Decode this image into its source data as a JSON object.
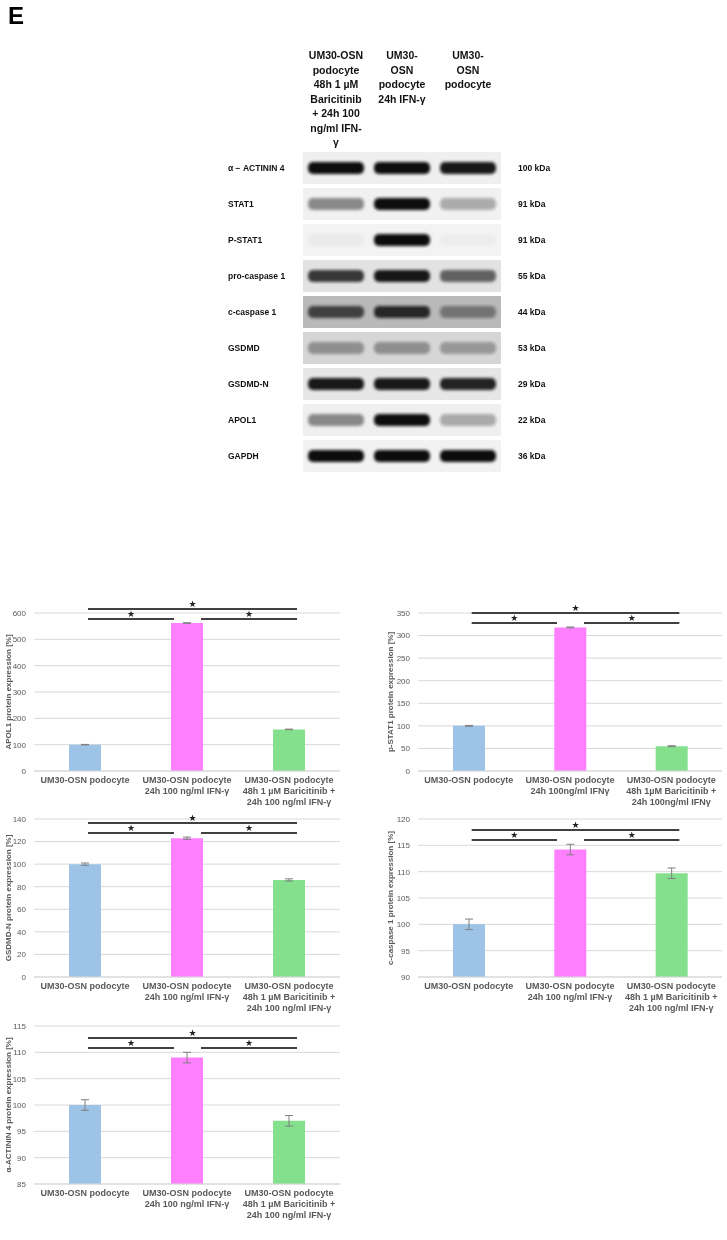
{
  "chart_data": [
    {
      "type": "other",
      "title": "E",
      "categories": [
        "UM30-OSN podocyte 48h 1 µM Baricitinib + 24h 100 ng/ml IFN- γ",
        "UM30-OSN podocyte 24h IFN-γ",
        "UM30-OSN podocyte"
      ],
      "y_categories": [
        "α − ACTININ 4",
        "STAT1",
        "P-STAT1",
        "pro-caspase 1",
        "c-caspase 1",
        "GSDMD",
        "GSDMD-N",
        "APOL1",
        "GAPDH"
      ],
      "y2_categories": [
        "100 kDa",
        "91 kDa",
        "91 kDa",
        "55 kDa",
        "44 kDa",
        "53 kDa",
        "29 kDa",
        "22 kDa",
        "36 kDa"
      ]
    },
    {
      "type": "bar",
      "ylabel": "APOL1 protein expression [%]",
      "categories": [
        "UM30-OSN podocyte",
        "UM30-OSN podocyte 24h 100 ng/ml IFN-γ",
        "UM30-OSN podocyte 48h 1 µM Baricitinib + 24h 100 ng/ml IFN-γ"
      ],
      "values": [
        100,
        562,
        158
      ],
      "errors": [
        1,
        1,
        1
      ],
      "colors": [
        "#9dc3e6",
        "#ff80ff",
        "#84e08c"
      ],
      "ylim": [
        0,
        600
      ],
      "yticks": [
        0,
        100,
        200,
        300,
        400,
        500,
        600
      ],
      "grid": "y",
      "annotations": [
        "★",
        "★",
        "★"
      ]
    },
    {
      "type": "bar",
      "ylabel": "p-STAT1 protein expression [%]",
      "categories": [
        "UM30-OSN podocyte",
        "UM30-OSN podocyte 24h 100ng/ml IFNγ",
        "UM30-OSN podocyte 48h 1µM Baricitinib + 24h 100ng/ml IFNγ"
      ],
      "values": [
        100,
        318,
        55
      ],
      "errors": [
        1,
        1,
        1
      ],
      "colors": [
        "#9dc3e6",
        "#ff80ff",
        "#84e08c"
      ],
      "ylim": [
        0,
        350
      ],
      "yticks": [
        0,
        50,
        100,
        150,
        200,
        250,
        300,
        350
      ],
      "grid": "y",
      "annotations": [
        "★",
        "★",
        "★"
      ]
    },
    {
      "type": "bar",
      "ylabel": "GSDMD-N protein expression [%]",
      "categories": [
        "UM30-OSN podocyte",
        "UM30-OSN podocyte 24h 100 ng/ml IFN-γ",
        "UM30-OSN podocyte 48h 1 µM Baricitinib + 24h 100 ng/ml IFN-γ"
      ],
      "values": [
        100,
        123,
        86
      ],
      "errors": [
        1,
        1,
        1
      ],
      "colors": [
        "#9dc3e6",
        "#ff80ff",
        "#84e08c"
      ],
      "ylim": [
        0,
        140
      ],
      "yticks": [
        0,
        20,
        40,
        60,
        80,
        100,
        120,
        140
      ],
      "grid": "y",
      "annotations": [
        "★",
        "★",
        "★"
      ]
    },
    {
      "type": "bar",
      "ylabel": "c-caspase 1 protein expression [%]",
      "categories": [
        "UM30-OSN podocyte",
        "UM30-OSN podocyte 24h 100 ng/ml IFN-γ",
        "UM30-OSN podocyte 48h 1 µM Baricitinib + 24h 100 ng/ml IFN-γ"
      ],
      "values": [
        100,
        114.2,
        109.7
      ],
      "errors": [
        1,
        1,
        1
      ],
      "colors": [
        "#9dc3e6",
        "#ff80ff",
        "#84e08c"
      ],
      "ylim": [
        90,
        120
      ],
      "yticks": [
        90,
        95,
        100,
        105,
        110,
        115,
        120
      ],
      "grid": "y",
      "annotations": [
        "★",
        "★",
        "★"
      ]
    },
    {
      "type": "bar",
      "ylabel": "α-ACTININ 4 protein expression [%]",
      "categories": [
        "UM30-OSN podocyte",
        "UM30-OSN podocyte 24h 100 ng/ml IFN-γ",
        "UM30-OSN podocyte 48h 1 µM Baricitinib + 24h 100 ng/ml IFN-γ"
      ],
      "values": [
        100,
        109,
        97
      ],
      "errors": [
        1,
        1,
        1
      ],
      "colors": [
        "#9dc3e6",
        "#ff80ff",
        "#84e08c"
      ],
      "ylim": [
        85,
        115
      ],
      "yticks": [
        85,
        90,
        95,
        100,
        105,
        110,
        115
      ],
      "grid": "y",
      "annotations": [
        "★",
        "★",
        "★"
      ]
    }
  ]
}
